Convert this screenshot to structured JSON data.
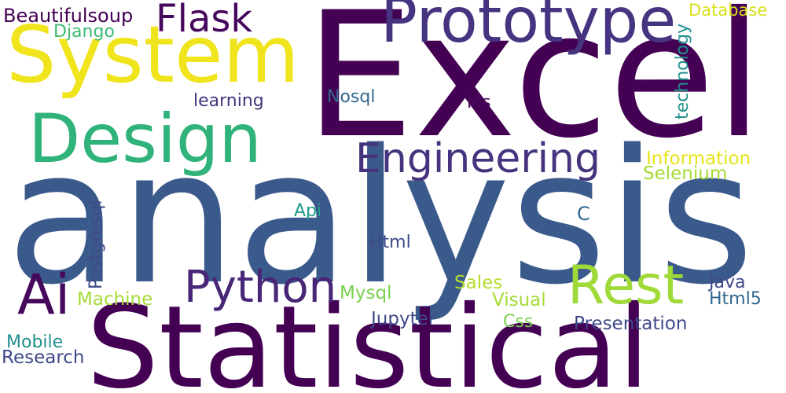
{
  "words": {
    "excel": {
      "text": "Excel",
      "color": "#440154"
    },
    "analysis": {
      "text": "analysis",
      "color": "#3b5a8c"
    },
    "statistical": {
      "text": "Statistical",
      "color": "#440154"
    },
    "system": {
      "text": "System",
      "color": "#f0e41c"
    },
    "prototype": {
      "text": "Prototype",
      "color": "#463480"
    },
    "design": {
      "text": "Design",
      "color": "#2fb37a"
    },
    "engineering": {
      "text": "Engineering",
      "color": "#46337e"
    },
    "rest": {
      "text": "Rest",
      "color": "#a0da39"
    },
    "python": {
      "text": "Python",
      "color": "#482677"
    },
    "ai": {
      "text": "Ai",
      "color": "#46085c"
    },
    "flask": {
      "text": "Flask",
      "color": "#46085c"
    },
    "beautifulsoup": {
      "text": "Beautifulsoup",
      "color": "#440154"
    },
    "django": {
      "text": "Django",
      "color": "#3dbc74"
    },
    "database": {
      "text": "Database",
      "color": "#d8e219"
    },
    "technology": {
      "text": "technology",
      "color": "#21908d"
    },
    "learning": {
      "text": "learning",
      "color": "#46337e"
    },
    "nosql": {
      "text": "Nosql",
      "color": "#31688e"
    },
    "ms": {
      "text": "Ms",
      "color": "#46085c"
    },
    "information": {
      "text": "Information",
      "color": "#e5e419"
    },
    "selenium": {
      "text": "Selenium",
      "color": "#a5db36"
    },
    "postgresql": {
      "text": "Postgresql",
      "color": "#3e4989"
    },
    "api": {
      "text": "Api",
      "color": "#1f9e89"
    },
    "c": {
      "text": "C",
      "color": "#31688e"
    },
    "html": {
      "text": "Html",
      "color": "#3e4989"
    },
    "sales": {
      "text": "Sales",
      "color": "#b5de2b"
    },
    "java": {
      "text": "Java",
      "color": "#3e4989"
    },
    "machine": {
      "text": "Machine",
      "color": "#a5db36"
    },
    "mysql": {
      "text": "Mysql",
      "color": "#7ad151"
    },
    "visual": {
      "text": "Visual",
      "color": "#a5db36"
    },
    "html5": {
      "text": "Html5",
      "color": "#31688e"
    },
    "jupyter": {
      "text": "Jupyter",
      "color": "#3e4989"
    },
    "css": {
      "text": "Css",
      "color": "#7ad151"
    },
    "presentation": {
      "text": "Presentation",
      "color": "#3e4989"
    },
    "mobile": {
      "text": "Mobile",
      "color": "#21908d"
    },
    "research": {
      "text": "Research",
      "color": "#3e4989"
    }
  }
}
